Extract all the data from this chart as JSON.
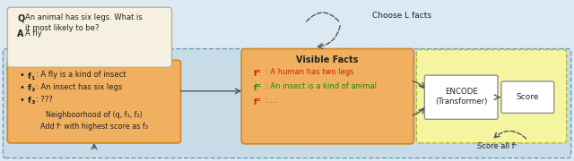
{
  "bg_color": "#dce9f2",
  "inner_blue": "#c8dce8",
  "cream_color": "#f5f0e0",
  "orange_color": "#f0b060",
  "yellow_color": "#f5f5a0",
  "white_color": "#ffffff",
  "border_blue": "#6a9cb8",
  "border_orange": "#d08820",
  "border_yellow": "#b8b820",
  "border_gray": "#909090",
  "dark": "#222222",
  "red": "#cc2200",
  "green": "#228800",
  "arrow": "#555555",
  "q_label": "Q",
  "q_text": "An animal has six legs. What is\nit most likely to be?",
  "a_label": "A",
  "a_text": "A fly",
  "f1": "A fly is a kind of insect",
  "f2": "An insect has six legs",
  "f3": "???",
  "vf_title": "Visible Facts",
  "fc1": "A human has two legs",
  "fc2": "An insect is a kind of animal",
  "fc3": "...",
  "encode": "ENCODE\n(Transformer)",
  "score": "Score",
  "choose_l": "Choose L facts",
  "neighborhood": "Neighboorhood of (q, f₁, f₂)",
  "add_fc": "Add fᶜ with highest score as f₃",
  "score_all": "Score all fᶜ"
}
